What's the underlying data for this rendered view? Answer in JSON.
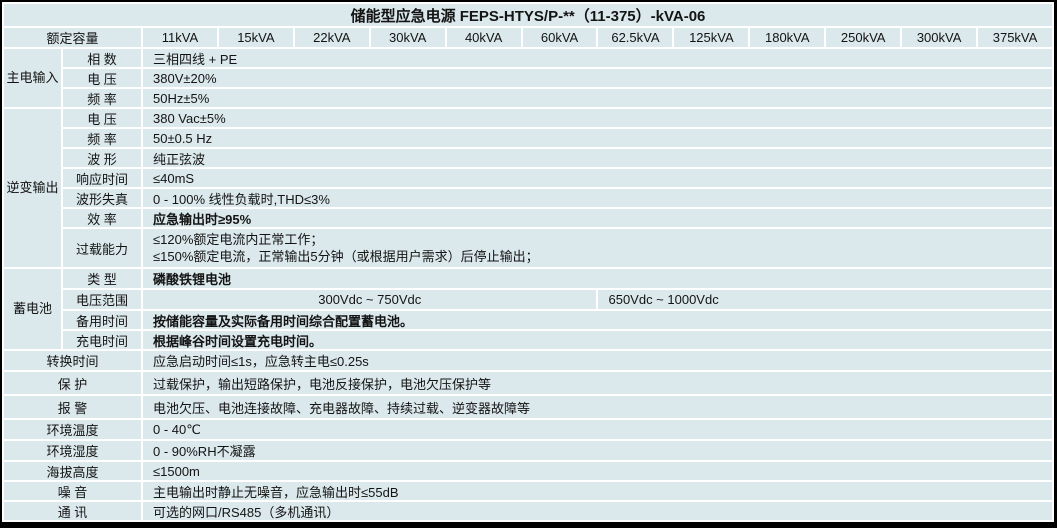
{
  "title": "储能型应急电源 FEPS-HTYS/P-**（11-375）-kVA-06",
  "header": {
    "label": "额定容量",
    "capacities": [
      "11kVA",
      "15kVA",
      "22kVA",
      "30kVA",
      "40kVA",
      "60kVA",
      "62.5kVA",
      "125kVA",
      "180kVA",
      "250kVA",
      "300kVA",
      "375kVA"
    ]
  },
  "groups": {
    "main_input": {
      "label": "主电输入",
      "rows": [
        {
          "param": "相 数",
          "value": "三相四线 + PE"
        },
        {
          "param": "电 压",
          "value": "380V±20%"
        },
        {
          "param": "频 率",
          "value": "50Hz±5%"
        }
      ]
    },
    "inverter_output": {
      "label": "逆变输出",
      "rows": [
        {
          "param": "电 压",
          "value": "380 Vac±5%"
        },
        {
          "param": "频 率",
          "value": "50±0.5 Hz"
        },
        {
          "param": "波 形",
          "value": "纯正弦波"
        },
        {
          "param": "响应时间",
          "value": "≤40mS"
        },
        {
          "param": "波形失真",
          "value": "0 - 100% 线性负载时,THD≤3%"
        },
        {
          "param": "效 率",
          "value": "应急输出时≥95%"
        },
        {
          "param": "过载能力",
          "value_line1": "≤120%额定电流内正常工作；",
          "value_line2": "≤150%额定电流，正常输出5分钟（或根据用户需求）后停止输出；"
        }
      ]
    },
    "battery": {
      "label": "蓄电池",
      "rows": [
        {
          "param": "类 型",
          "value": "磷酸铁锂电池"
        },
        {
          "param": "电压范围",
          "value_low": "300Vdc ~ 750Vdc",
          "value_high": "650Vdc ~ 1000Vdc"
        },
        {
          "param": "备用时间",
          "value": "按储能容量及实际备用时间综合配置蓄电池。"
        },
        {
          "param": "充电时间",
          "value": "根据峰谷时间设置充电时间。"
        }
      ]
    }
  },
  "simple_rows": [
    {
      "label": "转换时间",
      "value": "应急启动时间≤1s，应急转主电≤0.25s"
    },
    {
      "label": "保 护",
      "value": "过载保护，输出短路保护，电池反接保护，电池欠压保护等"
    },
    {
      "label": "报 警",
      "value": "电池欠压、电池连接故障、充电器故障、持续过载、逆变器故障等"
    },
    {
      "label": "环境温度",
      "value": "0 - 40℃"
    },
    {
      "label": "环境湿度",
      "value": "0 - 90%RH不凝露"
    },
    {
      "label": "海拔高度",
      "value": "≤1500m"
    },
    {
      "label": "噪 音",
      "value": "主电输出时静止无噪音，应急输出时≤55dB"
    },
    {
      "label": "通 讯",
      "value": "可选的网口/RS485（多机通讯）"
    }
  ],
  "colors": {
    "cell_bg": "#dbe8ec",
    "grid_line": "#ffffff",
    "frame": "#000000",
    "text": "#141414"
  }
}
